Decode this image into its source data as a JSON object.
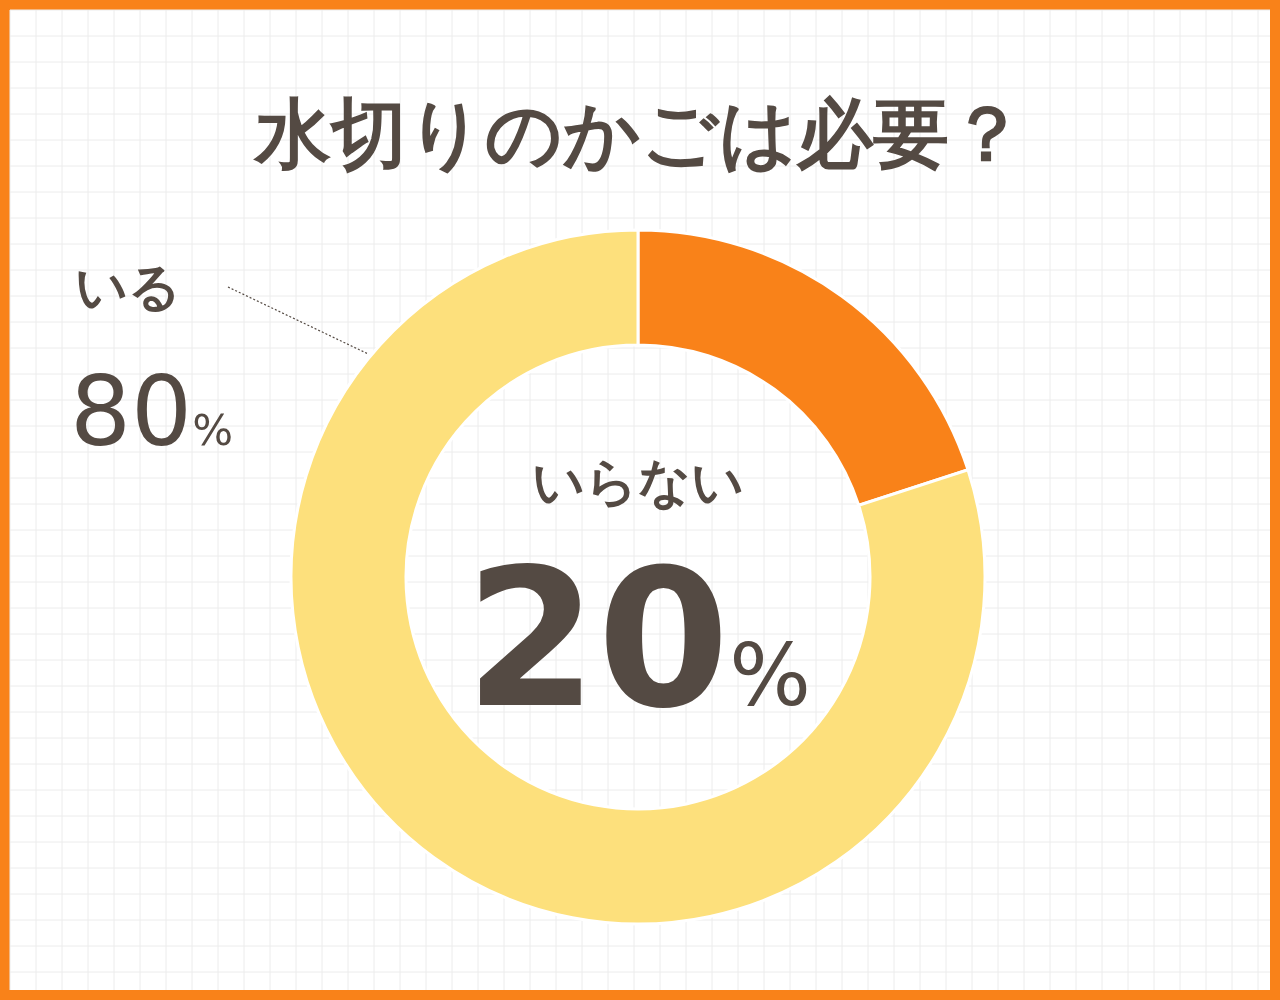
{
  "chart_data": {
    "type": "donut",
    "title": "水切りのかごは必要？",
    "categories": [
      "いらない",
      "いる"
    ],
    "values": [
      20,
      80
    ],
    "colors": [
      "#f98219",
      "#fde07c"
    ],
    "value_labels": [
      "20%",
      "80%"
    ]
  }
}
